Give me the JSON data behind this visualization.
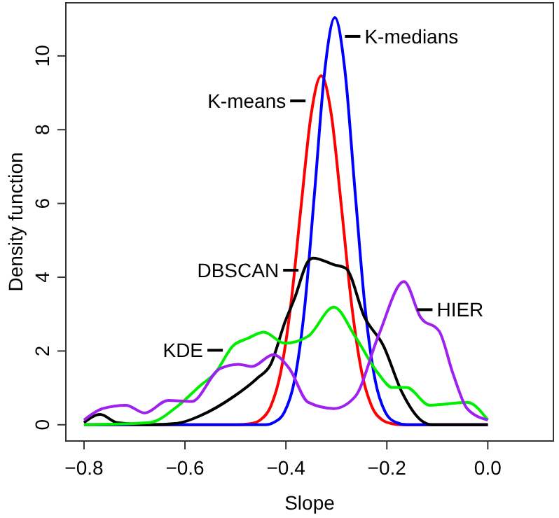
{
  "chart_data": {
    "type": "line",
    "xlabel": "Slope",
    "ylabel": "Density function",
    "xlim": [
      -0.836,
      0.13
    ],
    "ylim": [
      -0.44,
      11.44
    ],
    "xticks": [
      {
        "value": -0.8,
        "label": "−0.8"
      },
      {
        "value": -0.6,
        "label": "−0.6"
      },
      {
        "value": -0.4,
        "label": "−0.4"
      },
      {
        "value": -0.2,
        "label": "−0.2"
      },
      {
        "value": 0,
        "label": "0.0"
      }
    ],
    "yticks": [
      0,
      2,
      4,
      6,
      8,
      10
    ],
    "grid": false,
    "line_style": "solid",
    "marker": "none",
    "series": [
      {
        "color": "#ff0000",
        "x": [
          -0.8,
          -0.5,
          -0.47,
          -0.45,
          -0.43,
          -0.41,
          -0.39,
          -0.37,
          -0.35,
          -0.33,
          -0.31,
          -0.29,
          -0.27,
          -0.25,
          -0.23,
          -0.21,
          -0.19,
          -0.17,
          0
        ],
        "values": [
          0,
          0,
          0.03,
          0.14,
          0.5,
          1.44,
          3.28,
          5.91,
          8.41,
          9.46,
          8.41,
          5.91,
          3.28,
          1.44,
          0.5,
          0.14,
          0.03,
          0,
          0
        ]
      },
      {
        "color": "#0000ff",
        "x": [
          -0.8,
          -0.44,
          -0.423,
          -0.403,
          -0.383,
          -0.363,
          -0.343,
          -0.323,
          -0.303,
          -0.283,
          -0.263,
          -0.243,
          -0.223,
          -0.203,
          -0.183,
          -0.16,
          0
        ],
        "values": [
          0,
          0,
          0.07,
          0.34,
          1.2,
          3.16,
          6.33,
          9.6,
          11.04,
          9.6,
          6.33,
          3.16,
          1.2,
          0.34,
          0.07,
          0,
          0
        ]
      },
      {
        "color": "#000000",
        "x": [
          -0.8,
          -0.768,
          -0.735,
          -0.67,
          -0.615,
          -0.569,
          -0.504,
          -0.457,
          -0.43,
          -0.402,
          -0.383,
          -0.356,
          -0.346,
          -0.305,
          -0.281,
          -0.244,
          -0.207,
          -0.17,
          -0.133,
          -0.11,
          0
        ],
        "values": [
          0.06,
          0.28,
          0.06,
          0,
          0.04,
          0.25,
          0.76,
          1.26,
          1.64,
          2.78,
          3.42,
          4.43,
          4.52,
          4.34,
          4.24,
          2.91,
          2.15,
          0.88,
          0.13,
          0,
          0
        ]
      },
      {
        "color": "#00ee00",
        "x": [
          -0.8,
          -0.67,
          -0.615,
          -0.569,
          -0.541,
          -0.504,
          -0.476,
          -0.444,
          -0.402,
          -0.356,
          -0.305,
          -0.263,
          -0.217,
          -0.189,
          -0.161,
          -0.115,
          -0.041,
          0
        ],
        "values": [
          0,
          0.06,
          0.5,
          1.07,
          1.39,
          2.15,
          2.34,
          2.51,
          2.21,
          2.4,
          3.19,
          2.4,
          1.39,
          1.01,
          1.01,
          0.53,
          0.61,
          0.13
        ]
      },
      {
        "color": "#a020f0",
        "x": [
          -0.8,
          -0.763,
          -0.717,
          -0.68,
          -0.633,
          -0.587,
          -0.531,
          -0.494,
          -0.467,
          -0.425,
          -0.393,
          -0.356,
          -0.305,
          -0.263,
          -0.217,
          -0.166,
          -0.133,
          -0.096,
          -0.069,
          -0.041,
          0
        ],
        "values": [
          0.13,
          0.44,
          0.53,
          0.32,
          0.66,
          0.63,
          1.52,
          1.64,
          1.58,
          1.9,
          1.52,
          0.61,
          0.44,
          0.76,
          2.4,
          3.88,
          2.91,
          2.53,
          1.39,
          0.44,
          0.13
        ]
      }
    ],
    "annotations": [
      {
        "text": "K-medians",
        "x": -0.283,
        "y": 10.53
      },
      {
        "text": "K-means",
        "x": -0.361,
        "y": 8.78
      },
      {
        "text": "DBSCAN",
        "x": -0.375,
        "y": 4.19
      },
      {
        "text": "KDE",
        "x": -0.525,
        "y": 2.02
      },
      {
        "text": "HIER",
        "x": -0.14,
        "y": 3.12
      }
    ]
  }
}
